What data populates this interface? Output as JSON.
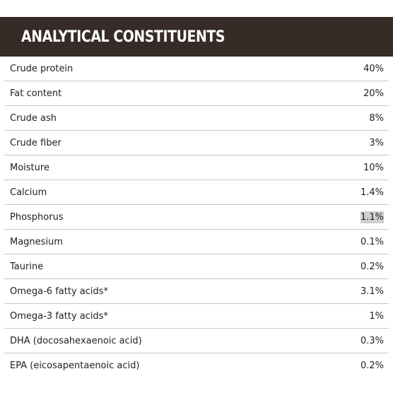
{
  "header": {
    "title": "ANALYTICAL CONSTITUENTS"
  },
  "constituents": [
    {
      "name": "Crude protein",
      "value": "40%"
    },
    {
      "name": "Fat content",
      "value": "20%"
    },
    {
      "name": "Crude ash",
      "value": "8%"
    },
    {
      "name": "Crude fiber",
      "value": "3%"
    },
    {
      "name": "Moisture",
      "value": "10%"
    },
    {
      "name": "Calcium",
      "value": "1.4%"
    },
    {
      "name": "Phosphorus",
      "value": "1.1%",
      "highlighted": true
    },
    {
      "name": "Magnesium",
      "value": "0.1%"
    },
    {
      "name": "Taurine",
      "value": "0.2%"
    },
    {
      "name": "Omega-6 fatty acids*",
      "value": "3.1%"
    },
    {
      "name": "Omega-3 fatty acids*",
      "value": "1%"
    },
    {
      "name": "DHA (docosahexaenoic acid)",
      "value": "0.3%"
    },
    {
      "name": "EPA (eicosapentaenoic acid)",
      "value": "0.2%"
    }
  ],
  "colors": {
    "header_background": "#372b27",
    "header_text": "#ffffff",
    "divider": "#c8c8c8",
    "highlight": "#cfcfcf"
  }
}
